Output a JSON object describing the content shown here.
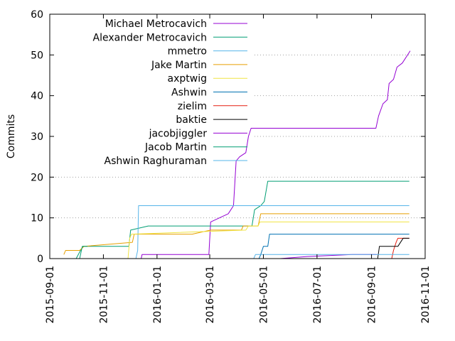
{
  "chart_data": {
    "type": "line",
    "title": "",
    "xlabel": "",
    "ylabel": "Commits",
    "xlim": [
      "2015-09-01",
      "2016-11-01"
    ],
    "ylim": [
      0,
      60
    ],
    "x_ticks": [
      "2015-09-01",
      "2015-11-01",
      "2016-01-01",
      "2016-03-01",
      "2016-05-01",
      "2016-07-01",
      "2016-09-01",
      "2016-11-01"
    ],
    "y_ticks": [
      0,
      10,
      20,
      30,
      40,
      50,
      60
    ],
    "grid": "horizontal dotted at major y ticks",
    "legend_position": "top-left",
    "series": [
      {
        "name": "Michael Metrocavich",
        "color": "#9400d3",
        "points": [
          [
            "2015-12-14",
            0
          ],
          [
            "2015-12-15",
            1
          ],
          [
            "2016-02-29",
            1
          ],
          [
            "2016-03-02",
            9
          ],
          [
            "2016-03-12",
            10
          ],
          [
            "2016-03-22",
            11
          ],
          [
            "2016-03-28",
            13
          ],
          [
            "2016-03-31",
            24
          ],
          [
            "2016-04-04",
            25
          ],
          [
            "2016-04-11",
            26
          ],
          [
            "2016-04-14",
            30
          ],
          [
            "2016-04-17",
            32
          ],
          [
            "2016-09-06",
            32
          ],
          [
            "2016-09-09",
            35
          ],
          [
            "2016-09-14",
            38
          ],
          [
            "2016-09-19",
            39
          ],
          [
            "2016-09-21",
            43
          ],
          [
            "2016-09-26",
            44
          ],
          [
            "2016-09-30",
            47
          ],
          [
            "2016-10-06",
            48
          ],
          [
            "2016-10-15",
            51
          ]
        ]
      },
      {
        "name": "Alexander Metrocavich",
        "color": "#009e73",
        "points": [
          [
            "2015-10-01",
            0
          ],
          [
            "2015-10-06",
            2
          ],
          [
            "2015-10-09",
            3
          ],
          [
            "2015-11-30",
            3
          ],
          [
            "2015-12-02",
            7
          ],
          [
            "2015-12-22",
            8
          ],
          [
            "2016-04-18",
            8
          ],
          [
            "2016-04-21",
            12
          ],
          [
            "2016-04-28",
            13
          ],
          [
            "2016-05-02",
            14
          ],
          [
            "2016-05-06",
            19
          ],
          [
            "2016-10-14",
            19
          ]
        ]
      },
      {
        "name": "mmetro",
        "color": "#56b4e9",
        "points": [
          [
            "2015-12-08",
            0
          ],
          [
            "2015-12-10",
            2
          ],
          [
            "2015-12-11",
            13
          ],
          [
            "2016-10-14",
            13
          ]
        ]
      },
      {
        "name": "Jake Martin",
        "color": "#e69f00",
        "points": [
          [
            "2015-09-17",
            1
          ],
          [
            "2015-09-19",
            2
          ],
          [
            "2015-10-05",
            2
          ],
          [
            "2015-10-10",
            3
          ],
          [
            "2015-12-04",
            4
          ],
          [
            "2015-12-06",
            6
          ],
          [
            "2016-02-10",
            6
          ],
          [
            "2016-03-02",
            7
          ],
          [
            "2016-04-06",
            7
          ],
          [
            "2016-04-08",
            8
          ],
          [
            "2016-04-25",
            8
          ],
          [
            "2016-04-28",
            11
          ],
          [
            "2016-10-14",
            11
          ]
        ]
      },
      {
        "name": "axptwig",
        "color": "#f0e442",
        "points": [
          [
            "2015-11-29",
            0
          ],
          [
            "2015-12-01",
            5
          ],
          [
            "2015-12-03",
            6
          ],
          [
            "2016-04-11",
            7
          ],
          [
            "2016-04-14",
            8
          ],
          [
            "2016-04-25",
            8
          ],
          [
            "2016-04-27",
            9
          ],
          [
            "2016-10-14",
            9
          ]
        ]
      },
      {
        "name": "Ashwin",
        "color": "#0072b2",
        "points": [
          [
            "2016-04-26",
            0
          ],
          [
            "2016-04-28",
            1
          ],
          [
            "2016-05-01",
            3
          ],
          [
            "2016-05-06",
            3
          ],
          [
            "2016-05-08",
            6
          ],
          [
            "2016-10-14",
            6
          ]
        ]
      },
      {
        "name": "zielim",
        "color": "#e51e10",
        "points": [
          [
            "2016-05-19",
            0
          ],
          [
            "2016-09-24",
            0
          ],
          [
            "2016-09-26",
            2
          ],
          [
            "2016-09-29",
            4
          ],
          [
            "2016-10-01",
            5
          ],
          [
            "2016-10-14",
            5
          ]
        ]
      },
      {
        "name": "baktie",
        "color": "#000000",
        "points": [
          [
            "2016-09-08",
            0
          ],
          [
            "2016-09-10",
            3
          ],
          [
            "2016-10-01",
            3
          ],
          [
            "2016-10-04",
            4
          ],
          [
            "2016-10-07",
            5
          ],
          [
            "2016-10-14",
            5
          ]
        ]
      },
      {
        "name": "jacobjiggler",
        "color": "#9400d3",
        "points": [
          [
            "2016-05-20",
            0
          ],
          [
            "2016-06-20",
            0.5
          ],
          [
            "2016-08-10",
            1
          ],
          [
            "2016-09-07",
            1
          ]
        ]
      },
      {
        "name": "Jacob Martin",
        "color": "#009e73",
        "points": [
          [
            "2015-10-05",
            0
          ],
          [
            "2015-10-08",
            3
          ],
          [
            "2015-10-14",
            3
          ]
        ]
      },
      {
        "name": "Ashwin Raghuraman",
        "color": "#56b4e9",
        "points": [
          [
            "2016-04-20",
            0
          ],
          [
            "2016-04-22",
            1
          ],
          [
            "2016-10-14",
            1
          ]
        ]
      }
    ]
  }
}
